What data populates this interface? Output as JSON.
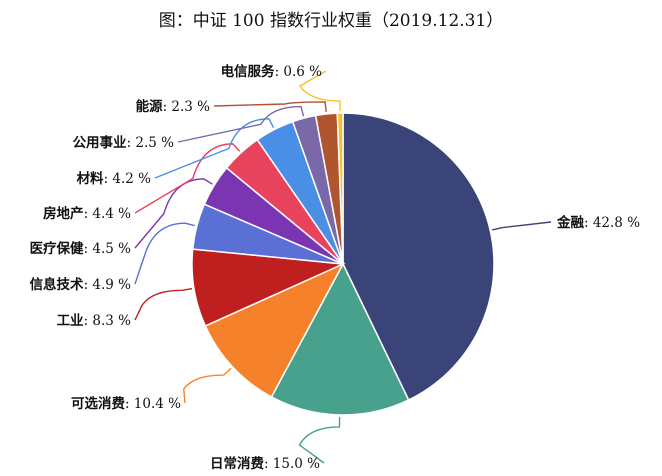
{
  "title": "图：中证 100 指数行业权重（2019.12.31）",
  "chart_data": {
    "type": "pie",
    "title": "图：中证 100 指数行业权重（2019.12.31）",
    "slices": [
      {
        "label": "金融",
        "value": 42.8,
        "value_text": "42.8 %",
        "color": "#3a4479"
      },
      {
        "label": "日常消费",
        "value": 15.0,
        "value_text": "15.0 %",
        "color": "#47a18d"
      },
      {
        "label": "可选消费",
        "value": 10.4,
        "value_text": "10.4 %",
        "color": "#f5822b"
      },
      {
        "label": "工业",
        "value": 8.3,
        "value_text": "8.3 %",
        "color": "#c01f1f"
      },
      {
        "label": "信息技术",
        "value": 4.9,
        "value_text": "4.9 %",
        "color": "#5a70d4"
      },
      {
        "label": "医疗保健",
        "value": 4.5,
        "value_text": "4.5 %",
        "color": "#7c35b2"
      },
      {
        "label": "房地产",
        "value": 4.4,
        "value_text": "4.4 %",
        "color": "#e8435c"
      },
      {
        "label": "材料",
        "value": 4.2,
        "value_text": "4.2 %",
        "color": "#4a8fe6"
      },
      {
        "label": "公用事业",
        "value": 2.5,
        "value_text": "2.5 %",
        "color": "#7b68a8"
      },
      {
        "label": "能源",
        "value": 2.3,
        "value_text": "2.3 %",
        "color": "#b05530"
      },
      {
        "label": "电信服务",
        "value": 0.6,
        "value_text": "0.6 %",
        "color": "#f6c02b"
      }
    ],
    "start_angle_deg": 0,
    "direction": "clockwise",
    "legend": "none",
    "labels": "outside-with-leader-lines"
  }
}
